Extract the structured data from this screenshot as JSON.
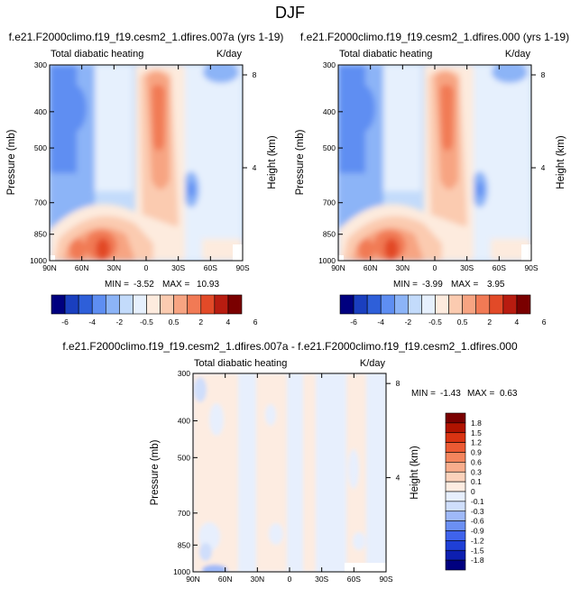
{
  "figure": {
    "title": "DJF"
  },
  "colors": {
    "main_scale": [
      "#00007f",
      "#1a3fbf",
      "#2e5fd9",
      "#5e8ef2",
      "#8cb4f7",
      "#c3dbfb",
      "#e6f0fd",
      "#fdebde",
      "#fbcbb0",
      "#f7a482",
      "#f17a55",
      "#e24a28",
      "#b81c10",
      "#7a0000"
    ],
    "diff_scale": [
      "#00007f",
      "#0d1fb0",
      "#1f3fd6",
      "#3f63ec",
      "#6b8ff3",
      "#9fb9f8",
      "#cfdefb",
      "#e7effd",
      "#fdece1",
      "#fbd2bb",
      "#f8ad8c",
      "#f4855d",
      "#ec5a33",
      "#d93312",
      "#b01300",
      "#7a0000"
    ],
    "land_mask": "#ffffff"
  },
  "chart_data": [
    {
      "id": "panel_a",
      "type": "contour",
      "title": "f.e21.F2000climo.f19_f19.cesm2_1.dfires.007a (yrs 1-19)",
      "left_label": "Total diabatic heating",
      "right_label": "K/day",
      "ylabel": "Pressure (mb)",
      "ylabel_right": "Height (km)",
      "x_ticks": [
        "90N",
        "60N",
        "30N",
        "0",
        "30S",
        "60S",
        "90S"
      ],
      "y_ticks": [
        "300",
        "400",
        "500",
        "700",
        "850",
        "1000"
      ],
      "y_ticks_right": [
        "8",
        "4"
      ],
      "min_label": "MIN =",
      "min_value": "-3.52",
      "max_label": "MAX =",
      "max_value": "10.93",
      "xlim": [
        90,
        -90
      ],
      "ylim": [
        1000,
        300
      ],
      "y_scale": "log",
      "levels": [
        -6,
        -4,
        -2,
        -0.5,
        0.5,
        2,
        4,
        6
      ]
    },
    {
      "id": "panel_b",
      "type": "contour",
      "title": "f.e21.F2000climo.f19_f19.cesm2_1.dfires.000 (yrs 1-19)",
      "left_label": "Total diabatic heating",
      "right_label": "K/day",
      "ylabel": "Pressure (mb)",
      "ylabel_right": "Height (km)",
      "x_ticks": [
        "90N",
        "60N",
        "30N",
        "0",
        "30S",
        "60S",
        "90S"
      ],
      "y_ticks": [
        "300",
        "400",
        "500",
        "700",
        "850",
        "1000"
      ],
      "y_ticks_right": [
        "8",
        "4"
      ],
      "min_label": "MIN =",
      "min_value": "-3.99",
      "max_label": "MAX =",
      "max_value": "3.95",
      "xlim": [
        90,
        -90
      ],
      "ylim": [
        1000,
        300
      ],
      "y_scale": "log",
      "levels": [
        -6,
        -4,
        -2,
        -0.5,
        0.5,
        2,
        4,
        6
      ]
    },
    {
      "id": "panel_diff",
      "type": "contour",
      "title": "f.e21.F2000climo.f19_f19.cesm2_1.dfires.007a - f.e21.F2000climo.f19_f19.cesm2_1.dfires.000",
      "left_label": "Total diabatic heating",
      "right_label": "K/day",
      "ylabel": "Pressure (mb)",
      "ylabel_right": "Height (km)",
      "x_ticks": [
        "90N",
        "60N",
        "30N",
        "0",
        "30S",
        "60S",
        "90S"
      ],
      "y_ticks": [
        "300",
        "400",
        "500",
        "700",
        "850",
        "1000"
      ],
      "y_ticks_right": [
        "8",
        "4"
      ],
      "min_label": "MIN =",
      "min_value": "-1.43",
      "max_label": "MAX =",
      "max_value": "0.63",
      "xlim": [
        90,
        -90
      ],
      "ylim": [
        1000,
        300
      ],
      "y_scale": "log",
      "levels": [
        -1.8,
        -1.5,
        -1.2,
        -0.9,
        -0.6,
        -0.3,
        -0.1,
        0,
        0.1,
        0.3,
        0.6,
        0.9,
        1.2,
        1.5,
        1.8
      ]
    }
  ],
  "colorbars": {
    "main_labels": [
      "-6",
      "-4",
      "-2",
      "-0.5",
      "0.5",
      "2",
      "4",
      "6"
    ],
    "diff_labels": [
      "1.8",
      "1.5",
      "1.2",
      "0.9",
      "0.6",
      "0.3",
      "0.1",
      "0",
      "-0.1",
      "-0.3",
      "-0.6",
      "-0.9",
      "-1.2",
      "-1.5",
      "-1.8"
    ]
  }
}
